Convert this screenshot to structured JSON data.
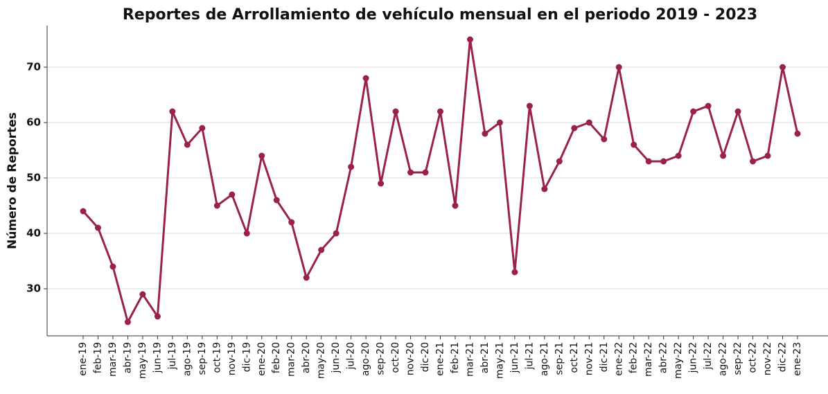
{
  "chart_data": {
    "type": "line",
    "title": "Reportes de Arrollamiento de vehículo mensual en el periodo 2019 - 2023",
    "ylabel": "Número de Reportes",
    "categories": [
      "ene-19",
      "feb-19",
      "mar-19",
      "abr-19",
      "may-19",
      "jun-19",
      "jul-19",
      "ago-19",
      "sep-19",
      "oct-19",
      "nov-19",
      "dic-19",
      "ene-20",
      "feb-20",
      "mar-20",
      "abr-20",
      "may-20",
      "jun-20",
      "jul-20",
      "ago-20",
      "sep-20",
      "oct-20",
      "nov-20",
      "dic-20",
      "ene-21",
      "feb-21",
      "mar-21",
      "abr-21",
      "may-21",
      "jun-21",
      "jul-21",
      "ago-21",
      "sep-21",
      "oct-21",
      "nov-21",
      "dic-21",
      "ene-22",
      "feb-22",
      "mar-22",
      "abr-22",
      "may-22",
      "jun-22",
      "jul-22",
      "ago-22",
      "sep-22",
      "oct-22",
      "nov-22",
      "dic-22",
      "ene-23"
    ],
    "values": [
      44,
      41,
      34,
      24,
      29,
      25,
      62,
      56,
      59,
      45,
      47,
      40,
      54,
      46,
      42,
      32,
      37,
      40,
      52,
      68,
      49,
      62,
      51,
      51,
      62,
      45,
      75,
      58,
      60,
      33,
      63,
      48,
      53,
      59,
      60,
      57,
      70,
      56,
      53,
      53,
      54,
      62,
      63,
      54,
      62,
      53,
      54,
      70,
      58
    ],
    "color": "#9b2247",
    "ylim": [
      21.5,
      77.5
    ],
    "yticks": [
      30,
      40,
      50,
      60,
      70
    ],
    "grid": true
  }
}
